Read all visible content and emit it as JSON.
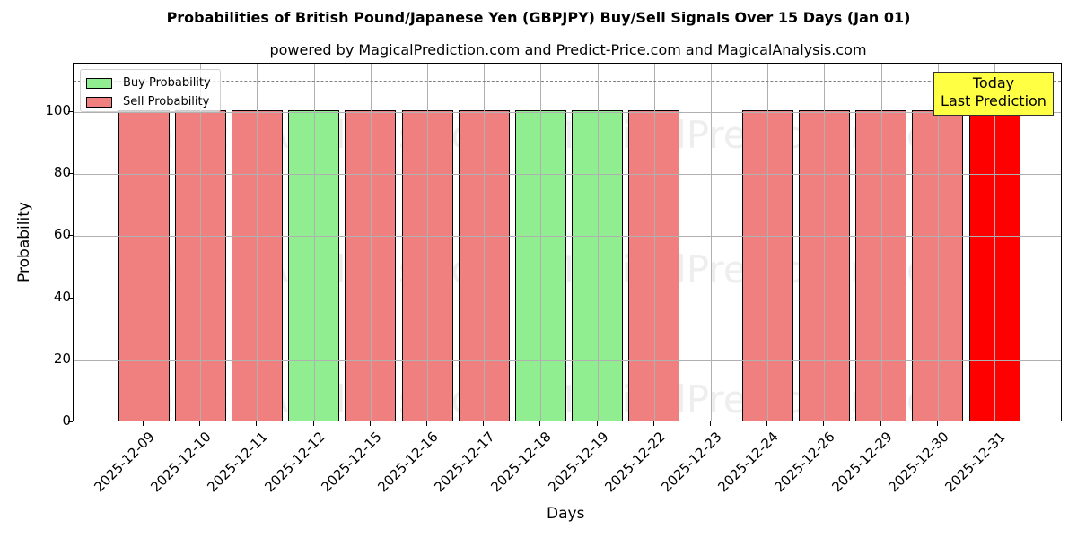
{
  "chart_data": {
    "type": "bar",
    "title": "Probabilities of British Pound/Japanese Yen (GBPJPY) Buy/Sell Signals Over 15 Days (Jan 01)",
    "subtitle": "powered by MagicalPrediction.com and Predict-Price.com and MagicalAnalysis.com",
    "xlabel": "Days",
    "ylabel": "Probability",
    "ylim": [
      0,
      115
    ],
    "yticks": [
      "0",
      "20",
      "40",
      "60",
      "80",
      "100"
    ],
    "grid": true,
    "legend_position": "upper left",
    "legend": [
      {
        "label": "Buy Probability",
        "color": "#90ee90"
      },
      {
        "label": "Sell Probability",
        "color": "#f08080"
      }
    ],
    "categories": [
      "2025-12-09",
      "2025-12-10",
      "2025-12-11",
      "2025-12-12",
      "2025-12-15",
      "2025-12-16",
      "2025-12-17",
      "2025-12-18",
      "2025-12-19",
      "2025-12-22",
      "2025-12-23",
      "2025-12-24",
      "2025-12-26",
      "2025-12-29",
      "2025-12-30",
      "2025-12-31"
    ],
    "bars": [
      {
        "date": "2025-12-09",
        "signal": "Sell",
        "value": 100,
        "color": "#f08080"
      },
      {
        "date": "2025-12-10",
        "signal": "Sell",
        "value": 100,
        "color": "#f08080"
      },
      {
        "date": "2025-12-11",
        "signal": "Sell",
        "value": 100,
        "color": "#f08080"
      },
      {
        "date": "2025-12-12",
        "signal": "Buy",
        "value": 100,
        "color": "#90ee90"
      },
      {
        "date": "2025-12-15",
        "signal": "Sell",
        "value": 100,
        "color": "#f08080"
      },
      {
        "date": "2025-12-16",
        "signal": "Sell",
        "value": 100,
        "color": "#f08080"
      },
      {
        "date": "2025-12-17",
        "signal": "Sell",
        "value": 100,
        "color": "#f08080"
      },
      {
        "date": "2025-12-18",
        "signal": "Buy",
        "value": 100,
        "color": "#90ee90"
      },
      {
        "date": "2025-12-19",
        "signal": "Buy",
        "value": 100,
        "color": "#90ee90"
      },
      {
        "date": "2025-12-22",
        "signal": "Sell",
        "value": 100,
        "color": "#f08080"
      },
      {
        "date": "2025-12-23",
        "signal": "None",
        "value": 0,
        "color": "none"
      },
      {
        "date": "2025-12-24",
        "signal": "Sell",
        "value": 100,
        "color": "#f08080"
      },
      {
        "date": "2025-12-26",
        "signal": "Sell",
        "value": 100,
        "color": "#f08080"
      },
      {
        "date": "2025-12-29",
        "signal": "Sell",
        "value": 100,
        "color": "#f08080"
      },
      {
        "date": "2025-12-30",
        "signal": "Sell",
        "value": 100,
        "color": "#f08080"
      },
      {
        "date": "2025-12-31",
        "signal": "Sell",
        "value": 100,
        "color": "#ff0000"
      }
    ],
    "series": [
      {
        "name": "Buy Probability",
        "values": [
          0,
          0,
          0,
          100,
          0,
          0,
          0,
          100,
          100,
          0,
          0,
          0,
          0,
          0,
          0,
          0
        ]
      },
      {
        "name": "Sell Probability",
        "values": [
          100,
          100,
          100,
          0,
          100,
          100,
          100,
          0,
          0,
          100,
          0,
          100,
          100,
          100,
          100,
          100
        ]
      }
    ],
    "reference_line": {
      "y": 110,
      "style": "dashed",
      "color": "#808080"
    },
    "annotation": {
      "line1": "Today",
      "line2": "Last Prediction",
      "background": "#ffff44"
    },
    "watermarks": [
      "MagicalAnalysis.com",
      "MagicalPrediction.com"
    ]
  }
}
